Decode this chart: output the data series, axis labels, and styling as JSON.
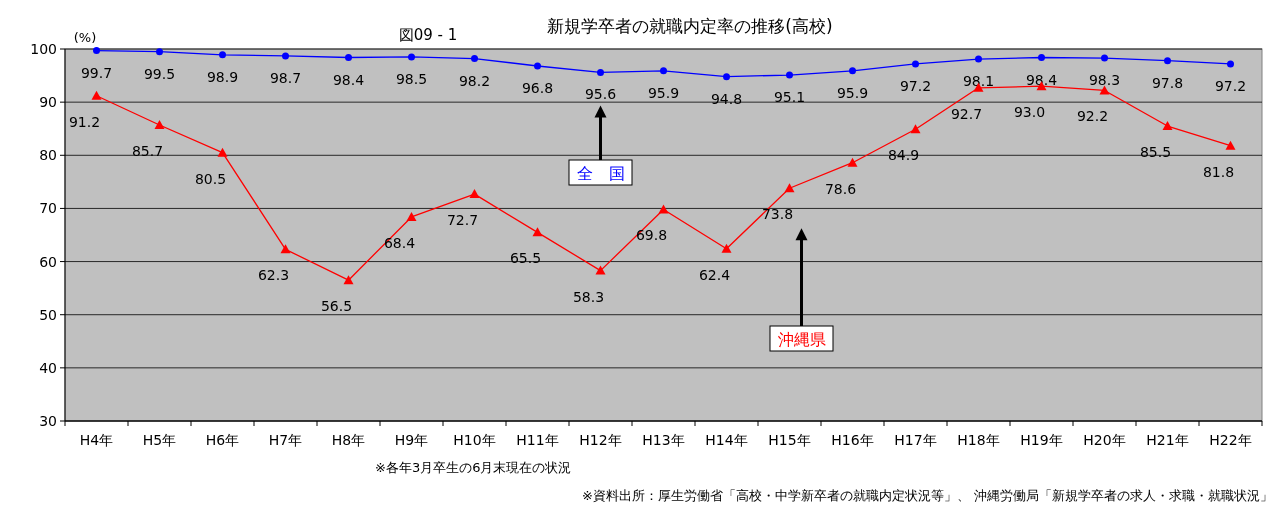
{
  "chart_data": {
    "type": "line",
    "title": "新規学卒者の就職内定率の推移(高校)",
    "subtitle": "図09 - 1",
    "ylabel": "(%)",
    "categories": [
      "H4年",
      "H5年",
      "H6年",
      "H7年",
      "H8年",
      "H9年",
      "H10年",
      "H11年",
      "H12年",
      "H13年",
      "H14年",
      "H15年",
      "H16年",
      "H17年",
      "H18年",
      "H19年",
      "H20年",
      "H21年",
      "H22年"
    ],
    "series": [
      {
        "name": "全　国",
        "color": "#0000ff",
        "marker": "circle",
        "values": [
          99.7,
          99.5,
          98.9,
          98.7,
          98.4,
          98.5,
          98.2,
          96.8,
          95.6,
          95.9,
          94.8,
          95.1,
          95.9,
          97.2,
          98.1,
          98.4,
          98.3,
          97.8,
          97.2
        ],
        "value_labels": [
          "99.7",
          "99.5",
          "98.9",
          "98.7",
          "98.4",
          "98.5",
          "98.2",
          "96.8",
          "95.6",
          "95.9",
          "94.8",
          "95.1",
          "95.9",
          "97.2",
          "98.1",
          "98.4",
          "98.3",
          "97.8",
          "97.2"
        ]
      },
      {
        "name": "沖縄県",
        "color": "#ff0000",
        "marker": "triangle",
        "values": [
          91.2,
          85.7,
          80.5,
          62.3,
          56.5,
          68.4,
          72.7,
          65.5,
          58.3,
          69.8,
          62.4,
          73.8,
          78.6,
          84.9,
          92.7,
          93.0,
          92.2,
          85.5,
          81.8
        ],
        "value_labels": [
          "91.2",
          "85.7",
          "80.5",
          "62.3",
          "56.5",
          "68.4",
          "72.7",
          "65.5",
          "58.3",
          "69.8",
          "62.4",
          "73.8",
          "78.6",
          "84.9",
          "92.7",
          "93.0",
          "92.2",
          "85.5",
          "81.8"
        ]
      }
    ],
    "ylim": [
      30,
      100
    ],
    "yticks": [
      30,
      40,
      50,
      60,
      70,
      80,
      90,
      100
    ],
    "grid": "y",
    "legend": false,
    "annotations": [
      "※各年3月卒生の6月末現在の状況",
      "※資料出所：厚生労働省「高校・中学新卒者の就職内定状況等」、 沖縄労働局「新規学卒者の求人・求職・就職状況」"
    ]
  }
}
